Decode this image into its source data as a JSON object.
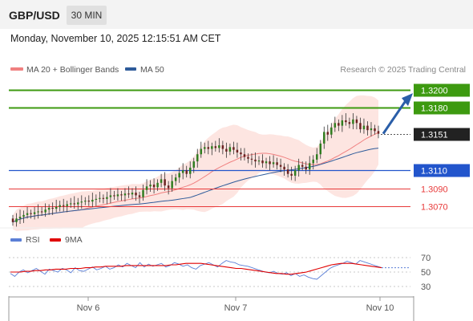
{
  "header": {
    "pair": "GBP/USD",
    "timeframe": "30 MIN",
    "datetime": "Monday, November 10, 2025 12:15:51 AM CET"
  },
  "price_panel": {
    "legend": [
      {
        "label": "MA 20 + Bollinger Bands",
        "color": "#f08080"
      },
      {
        "label": "MA 50",
        "color": "#2e5b9a"
      }
    ],
    "credit": "Research © 2025 Trading Central"
  },
  "rsi_panel": {
    "legend": [
      {
        "label": "RSI",
        "color": "#5b7fd6"
      },
      {
        "label": "9MA",
        "color": "#e00000"
      }
    ]
  },
  "chart_data": [
    {
      "type": "candlestick",
      "ylim": [
        1.305,
        1.321
      ],
      "x_tick_labels": [
        "Nov 6",
        "Nov 7",
        "Nov 10"
      ],
      "levels": [
        {
          "value": 1.32,
          "label": "1.3200",
          "kind": "resistance-target",
          "color": "#3d9a10"
        },
        {
          "value": 1.318,
          "label": "1.3180",
          "kind": "resistance",
          "color": "#3d9a10"
        },
        {
          "value": 1.3151,
          "label": "1.3151",
          "kind": "last-price",
          "color": "#222222"
        },
        {
          "value": 1.311,
          "label": "1.3110",
          "kind": "pivot",
          "color": "#2255cc"
        },
        {
          "value": 1.309,
          "label": "1.3090",
          "kind": "support",
          "color": "#e83a3a"
        },
        {
          "value": 1.307,
          "label": "1.3070",
          "kind": "support",
          "color": "#e83a3a"
        }
      ],
      "candles_close": [
        1.3052,
        1.3056,
        1.3058,
        1.306,
        1.3062,
        1.3061,
        1.3063,
        1.3064,
        1.3063,
        1.3066,
        1.3068,
        1.3067,
        1.3069,
        1.3071,
        1.307,
        1.3072,
        1.3073,
        1.3072,
        1.3074,
        1.3075,
        1.3076,
        1.3075,
        1.3077,
        1.3078,
        1.3079,
        1.3078,
        1.308,
        1.3082,
        1.3081,
        1.3083,
        1.3082,
        1.3084,
        1.3083,
        1.3085,
        1.3082,
        1.308,
        1.3088,
        1.3092,
        1.3094,
        1.3091,
        1.3096,
        1.31,
        1.3093,
        1.309,
        1.3098,
        1.3102,
        1.3107,
        1.311,
        1.3106,
        1.3113,
        1.312,
        1.3128,
        1.3134,
        1.3136,
        1.3134,
        1.3137,
        1.3135,
        1.3138,
        1.3134,
        1.3131,
        1.3136,
        1.3133,
        1.313,
        1.3128,
        1.3125,
        1.3123,
        1.3122,
        1.312,
        1.3121,
        1.3118,
        1.312,
        1.3117,
        1.3119,
        1.3116,
        1.3114,
        1.3111,
        1.3106,
        1.3104,
        1.311,
        1.3116,
        1.3114,
        1.3111,
        1.3118,
        1.3122,
        1.3128,
        1.314,
        1.3153,
        1.315,
        1.3158,
        1.3163,
        1.316,
        1.3166,
        1.3164,
        1.3162,
        1.3167,
        1.3163,
        1.3156,
        1.316,
        1.3155,
        1.3157,
        1.3154,
        1.3151
      ],
      "forecast_arrow": {
        "from": 1.3151,
        "to": 1.32
      }
    },
    {
      "type": "line",
      "title": "RSI",
      "ylim": [
        30,
        70
      ],
      "y_ticks": [
        70,
        50,
        30
      ],
      "series": [
        {
          "name": "RSI",
          "values": [
            48,
            44,
            50,
            53,
            49,
            52,
            55,
            51,
            47,
            54,
            52,
            50,
            55,
            53,
            49,
            56,
            52,
            51,
            54,
            57,
            53,
            55,
            58,
            54,
            56,
            60,
            57,
            62,
            59,
            56,
            63,
            57,
            61,
            58,
            60,
            62,
            57,
            59,
            63,
            61,
            58,
            60,
            56,
            54,
            59,
            61,
            63,
            60,
            57,
            62,
            66,
            64,
            63,
            60,
            59,
            58,
            56,
            54,
            52,
            50,
            49,
            51,
            48,
            47,
            49,
            45,
            48,
            44,
            46,
            43,
            41,
            40,
            45,
            50,
            55,
            58,
            60,
            62,
            65,
            63,
            61,
            66,
            64,
            62,
            60,
            58,
            56
          ],
          "color": "#5b7fd6"
        },
        {
          "name": "9MA",
          "values": [
            50,
            50,
            50,
            51,
            51,
            52,
            52,
            53,
            53,
            54,
            54,
            54,
            55,
            55,
            55,
            56,
            56,
            57,
            57,
            58,
            58,
            58,
            58,
            59,
            59,
            59,
            59,
            59,
            59,
            59,
            59,
            59,
            60,
            60,
            61,
            62,
            62,
            62,
            62,
            61,
            60,
            59,
            58,
            57,
            56,
            55,
            55,
            54,
            53,
            52,
            51,
            50,
            49,
            48,
            48,
            47,
            47,
            48,
            49,
            50,
            52,
            54,
            56,
            58,
            60,
            61,
            62,
            62,
            62,
            61,
            60,
            59,
            58,
            57,
            56
          ],
          "color": "#e00000"
        }
      ]
    }
  ]
}
